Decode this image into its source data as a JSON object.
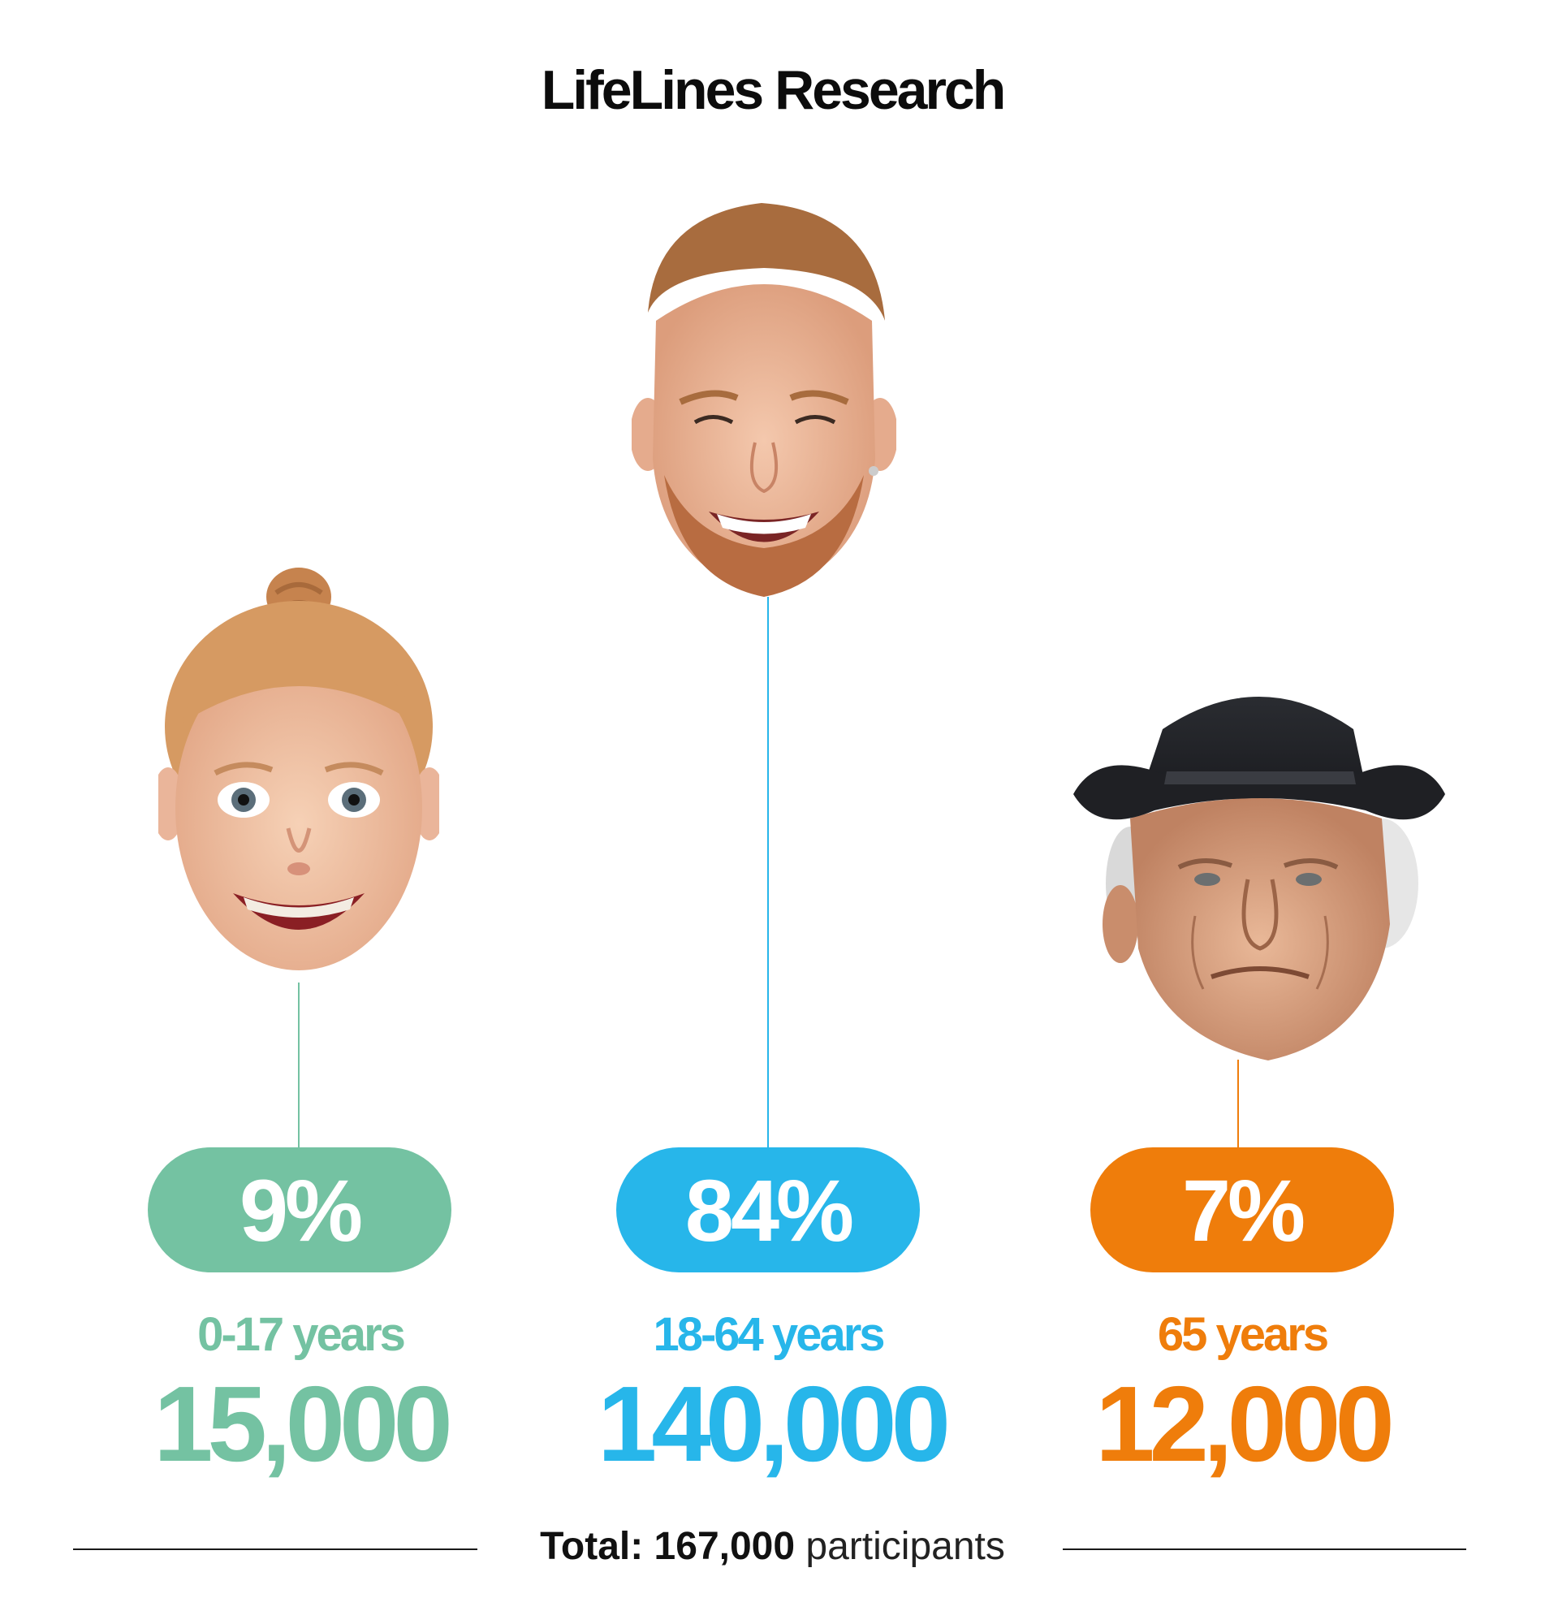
{
  "title": "LifeLines Research",
  "groups": [
    {
      "percent": "9%",
      "age_range": "0-17 years",
      "count": "15,000",
      "color": "#74c2a2",
      "portrait": "child-face"
    },
    {
      "percent": "84%",
      "age_range": "18-64 years",
      "count": "140,000",
      "color": "#27b6ea",
      "portrait": "young-man-face"
    },
    {
      "percent": "7%",
      "age_range": "65 years",
      "count": "12,000",
      "color": "#ef7d0b",
      "portrait": "elderly-man-face"
    }
  ],
  "footer": {
    "total_label": "Total:",
    "total_value": "167,000",
    "total_unit": "participants"
  }
}
